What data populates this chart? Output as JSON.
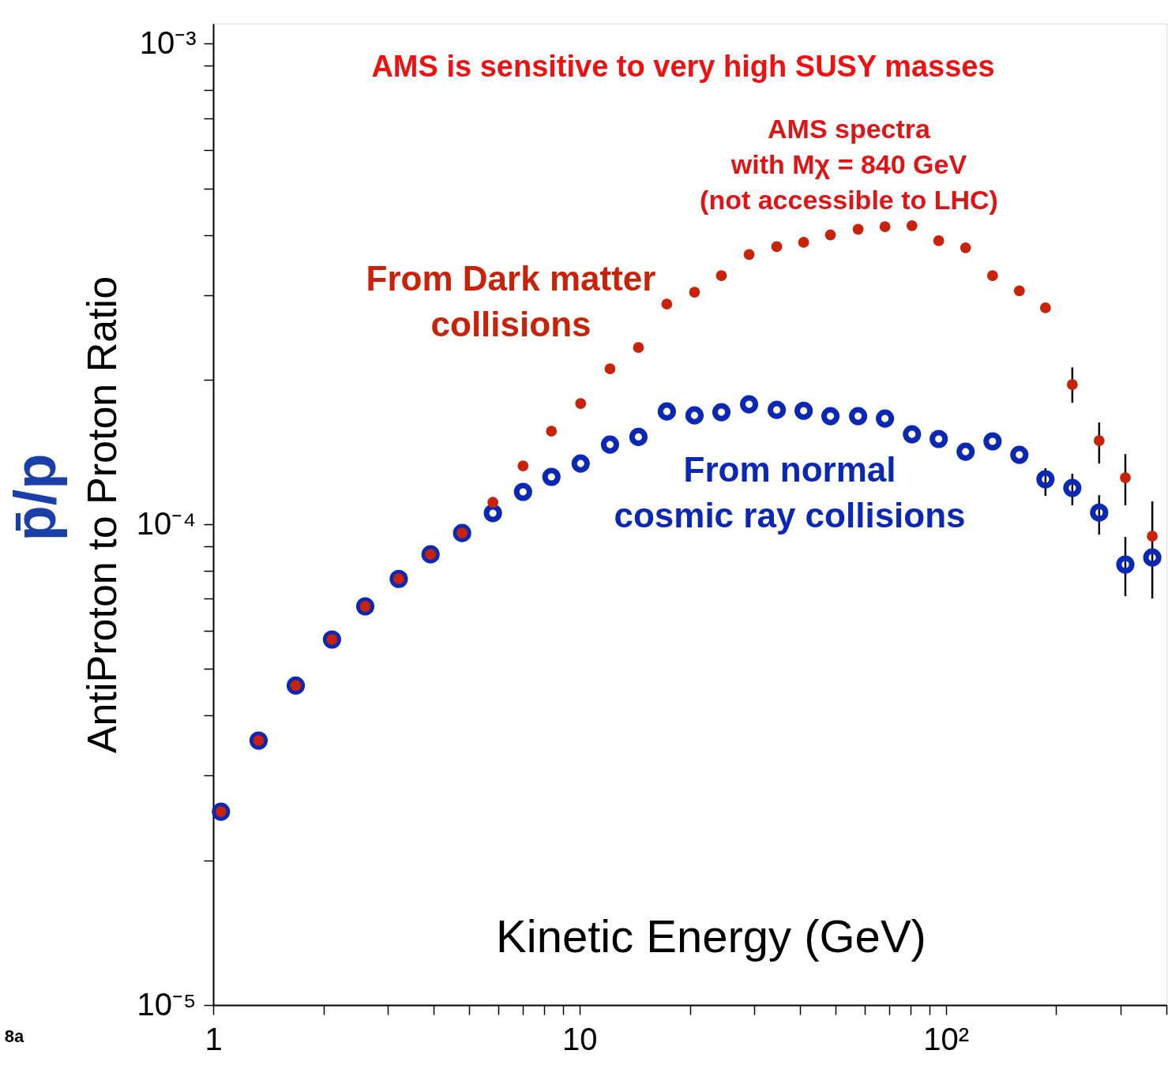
{
  "chart_data": {
    "type": "scatter",
    "xlabel": "Kinetic Energy (GeV)",
    "ylabel": "AntiProton to Proton Ratio",
    "log": "xy",
    "marker": "circle",
    "annotations": [
      "AMS is sensitive to very high SUSY masses",
      "AMS spectra\nwith Mχ = 840 GeV\n(not accessible to LHC)",
      "p̄/p",
      "8a"
    ],
    "x": [
      1.05,
      1.33,
      1.68,
      2.11,
      2.6,
      3.21,
      3.92,
      4.78,
      5.8,
      7.01,
      8.38,
      10.07,
      12.11,
      14.48,
      17.31,
      20.6,
      24.39,
      29.03,
      34.54,
      40.9,
      48.4,
      57.6,
      68.2,
      80.8,
      95.6,
      113.2,
      134.1,
      158.7,
      187.0,
      221.4,
      262.1,
      309,
      366
    ],
    "series": [
      {
        "name": "From normal\ncosmic ray collisions",
        "color": "#0a28b4",
        "values": [
          2.525e-05,
          3.55e-05,
          4.62e-05,
          5.76e-05,
          6.75e-05,
          7.7e-05,
          8.66e-05,
          9.59e-05,
          0.0001055,
          0.0001168,
          0.0001255,
          0.0001338,
          0.0001465,
          0.000152,
          0.0001717,
          0.0001685,
          0.0001711,
          0.0001777,
          0.000173,
          0.0001723,
          0.0001679,
          0.0001679,
          0.000166,
          0.0001539,
          0.0001505,
          0.0001416,
          0.0001488,
          0.0001395,
          0.0001241,
          0.000119,
          0.0001058,
          8.25e-05,
          8.53e-05
        ],
        "errors": [
          null,
          null,
          null,
          null,
          null,
          null,
          null,
          null,
          null,
          null,
          null,
          null,
          null,
          null,
          null,
          null,
          null,
          null,
          null,
          null,
          null,
          null,
          null,
          null,
          null,
          null,
          null,
          null,
          [
            0.0001146,
            0.0001308
          ],
          [
            0.0001095,
            0.0001274
          ],
          [
            9.52e-05,
            0.000115
          ],
          [
            7.09e-05,
            9.41e-05
          ],
          [
            7.01e-05,
            0.0001116
          ]
        ]
      },
      {
        "name": "From Dark matter\ncollisions",
        "color": "#c82208",
        "values": [
          2.525e-05,
          3.55e-05,
          4.62e-05,
          5.76e-05,
          6.75e-05,
          7.7e-05,
          8.66e-05,
          9.59e-05,
          0.0001111,
          0.0001323,
          0.0001562,
          0.0001784,
          0.0002106,
          0.0002332,
          0.0002871,
          0.000304,
          0.000329,
          0.000364,
          0.000378,
          0.000386,
          0.0004,
          0.000411,
          0.000416,
          0.000418,
          0.000389,
          0.000376,
          0.000329,
          0.000306,
          0.000282,
          0.0001953,
          0.0001493,
          0.000125,
          9.45e-05
        ],
        "errors": [
          null,
          null,
          null,
          null,
          null,
          null,
          null,
          null,
          null,
          null,
          null,
          null,
          null,
          null,
          null,
          null,
          null,
          null,
          null,
          null,
          null,
          null,
          null,
          null,
          null,
          null,
          null,
          null,
          null,
          [
            0.000179,
            0.000212
          ],
          [
            0.0001338,
            0.0001628
          ],
          [
            0.0001095,
            0.00014
          ],
          null
        ]
      }
    ],
    "xlim": [
      1,
      400
    ],
    "xticks": [
      1,
      {
        "value": 2,
        "label": null
      },
      {
        "value": 3,
        "label": null
      },
      {
        "value": 4,
        "label": null
      },
      {
        "value": 5,
        "label": null
      },
      {
        "value": 6,
        "label": null
      },
      {
        "value": 7,
        "label": null
      },
      {
        "value": 8,
        "label": null
      },
      {
        "value": 9,
        "label": null
      },
      10,
      {
        "value": 20,
        "label": null
      },
      {
        "value": 30,
        "label": null
      },
      {
        "value": 40,
        "label": null
      },
      {
        "value": 50,
        "label": null
      },
      {
        "value": 60,
        "label": null
      },
      {
        "value": 70,
        "label": null
      },
      {
        "value": 80,
        "label": null
      },
      {
        "value": 90,
        "label": null
      },
      {
        "value": 100,
        "label": "10²"
      },
      {
        "value": 200,
        "label": null
      },
      {
        "value": 300,
        "label": null
      },
      {
        "value": 400,
        "label": null
      }
    ],
    "ylim": [
      1e-05,
      0.0011
    ],
    "yticks": [
      {
        "value": 1e-05,
        "label": "10⁻⁵"
      },
      {
        "value": 2e-05,
        "label": null
      },
      {
        "value": 3e-05,
        "label": null
      },
      {
        "value": 4e-05,
        "label": null
      },
      {
        "value": 5e-05,
        "label": null
      },
      {
        "value": 6e-05,
        "label": null
      },
      {
        "value": 7e-05,
        "label": null
      },
      {
        "value": 8e-05,
        "label": null
      },
      {
        "value": 9e-05,
        "label": null
      },
      {
        "value": 0.0001,
        "label": "10⁻⁴"
      },
      {
        "value": 0.0002,
        "label": null
      },
      {
        "value": 0.0003,
        "label": null
      },
      {
        "value": 0.0004,
        "label": null
      },
      {
        "value": 0.0005,
        "label": null
      },
      {
        "value": 0.0006,
        "label": null
      },
      {
        "value": 0.0007,
        "label": null
      },
      {
        "value": 0.0008,
        "label": null
      },
      {
        "value": 0.0009,
        "label": null
      },
      {
        "value": 0.001,
        "label": "10⁻³"
      }
    ]
  }
}
